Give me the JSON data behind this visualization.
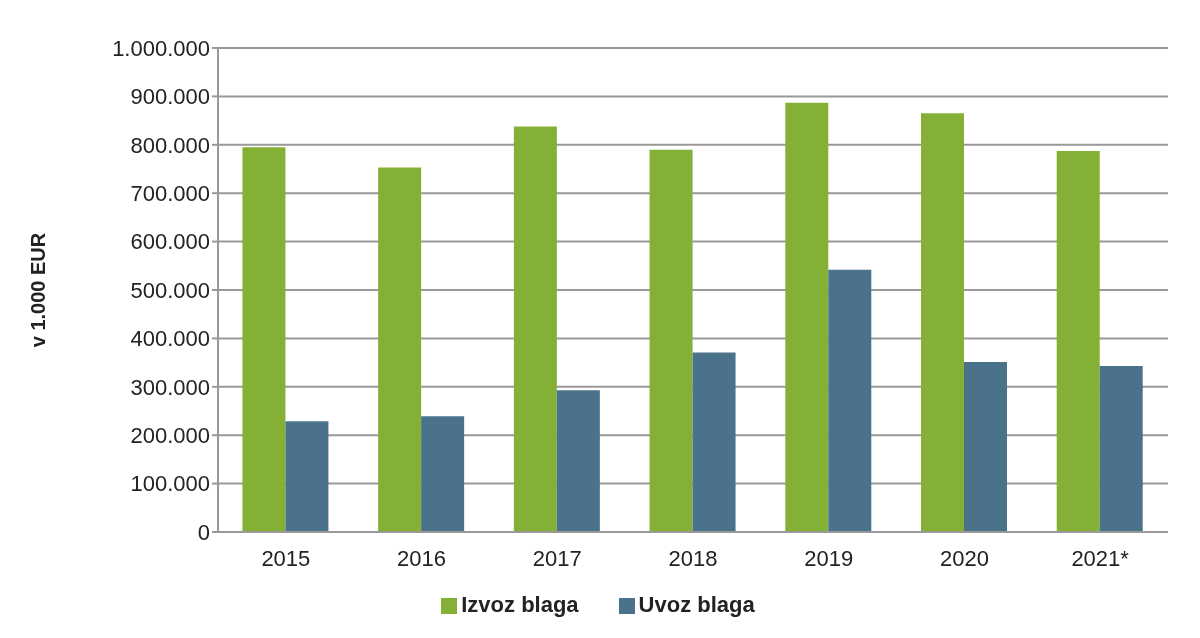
{
  "chart_data": {
    "type": "bar",
    "ylabel": "v 1.000 EUR",
    "categories": [
      "2015",
      "2016",
      "2017",
      "2018",
      "2019",
      "2020",
      "2021*"
    ],
    "series": [
      {
        "name": "Izvoz blaga",
        "color": "#84b135",
        "values": [
          795000,
          753000,
          838000,
          790000,
          887000,
          865000,
          787000
        ]
      },
      {
        "name": "Uvoz blaga",
        "color": "#4a738b",
        "values": [
          229000,
          239000,
          293000,
          371000,
          542000,
          351000,
          343000
        ]
      }
    ],
    "ylim": [
      0,
      1000000
    ],
    "yticks": [
      0,
      {
        "value": 100000,
        "label": "100.000"
      },
      {
        "value": 200000,
        "label": "200.000"
      },
      {
        "value": 300000,
        "label": "300.000"
      },
      {
        "value": 400000,
        "label": "400.000"
      },
      {
        "value": 500000,
        "label": "500.000"
      },
      {
        "value": 600000,
        "label": "600.000"
      },
      {
        "value": 700000,
        "label": "700.000"
      },
      {
        "value": 800000,
        "label": "800.000"
      },
      {
        "value": 900000,
        "label": "900.000"
      },
      {
        "value": 1000000,
        "label": "1.000.000"
      }
    ],
    "grid": "y",
    "legend": "bottom"
  }
}
